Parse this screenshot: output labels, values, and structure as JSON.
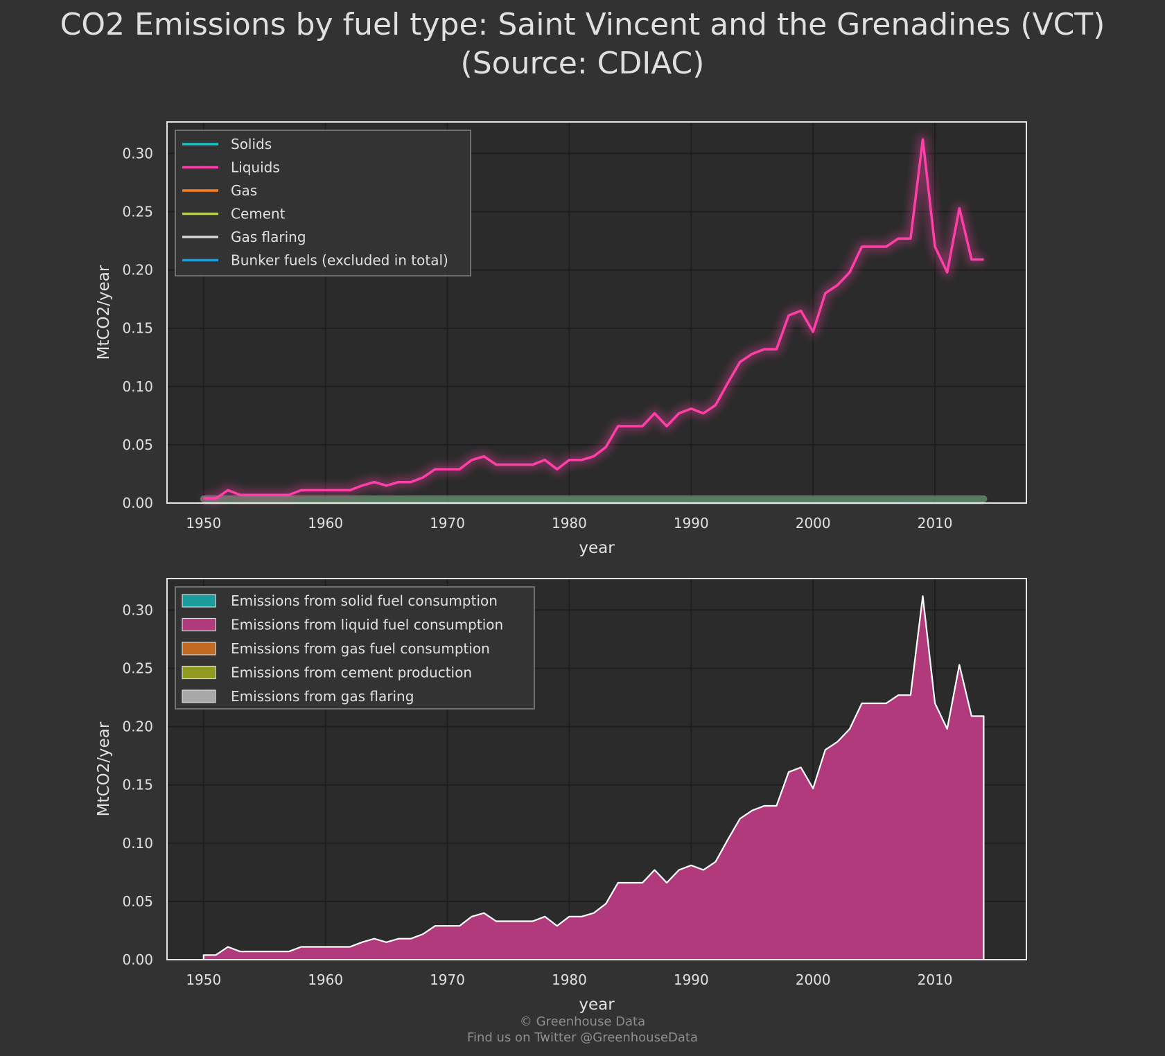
{
  "title_line1": "CO2 Emissions by fuel type: Saint Vincent and the Grenadines (VCT)",
  "title_line2": "(Source: CDIAC)",
  "footer": {
    "line1": "© Greenhouse Data",
    "line2": "Find us on Twitter @GreenhouseData"
  },
  "colors": {
    "background": "#323232",
    "plot_background": "#2b2b2b",
    "grid": "#1e1e1e",
    "frame": "#e6e6e6",
    "solids": "#17c6c8",
    "liquids": "#ff3fa8",
    "gas": "#ff7f1e",
    "cement": "#bcd12a",
    "gas_flaring": "#d8d8d8",
    "bunker": "#1f9bd1",
    "area_solid": "#1a9c9c",
    "area_liquid": "#b03a7c",
    "area_gas": "#c06a22",
    "area_cement": "#8f9a1f",
    "area_flaring": "#a8a8a8"
  },
  "chart_data": [
    {
      "type": "line",
      "xlabel": "year",
      "ylabel": "MtCO2/year",
      "xlim": [
        1947,
        2017.5
      ],
      "ylim": [
        0,
        0.327
      ],
      "xticks": [
        "1950",
        "1960",
        "1970",
        "1980",
        "1990",
        "2000",
        "2010"
      ],
      "yticks": [
        "0.00",
        "0.05",
        "0.10",
        "0.15",
        "0.20",
        "0.25",
        "0.30"
      ],
      "grid": true,
      "legend_position": "top-left",
      "x": [
        1950,
        1951,
        1952,
        1953,
        1954,
        1955,
        1956,
        1957,
        1958,
        1959,
        1960,
        1961,
        1962,
        1963,
        1964,
        1965,
        1966,
        1967,
        1968,
        1969,
        1970,
        1971,
        1972,
        1973,
        1974,
        1975,
        1976,
        1977,
        1978,
        1979,
        1980,
        1981,
        1982,
        1983,
        1984,
        1985,
        1986,
        1987,
        1988,
        1989,
        1990,
        1991,
        1992,
        1993,
        1994,
        1995,
        1996,
        1997,
        1998,
        1999,
        2000,
        2001,
        2002,
        2003,
        2004,
        2005,
        2006,
        2007,
        2008,
        2009,
        2010,
        2011,
        2012,
        2013,
        2014
      ],
      "series": [
        {
          "name": "Solids",
          "values": [
            0,
            0,
            0,
            0,
            0,
            0,
            0,
            0,
            0,
            0,
            0,
            0,
            0,
            0,
            0,
            0,
            0,
            0,
            0,
            0,
            0,
            0,
            0,
            0,
            0,
            0,
            0,
            0,
            0,
            0,
            0,
            0,
            0,
            0,
            0,
            0,
            0,
            0,
            0,
            0,
            0,
            0,
            0,
            0,
            0,
            0,
            0,
            0,
            0,
            0,
            0,
            0,
            0,
            0,
            0,
            0,
            0,
            0,
            0,
            0,
            0,
            0,
            0,
            0,
            0
          ]
        },
        {
          "name": "Liquids",
          "values": [
            0.004,
            0.004,
            0.011,
            0.007,
            0.007,
            0.007,
            0.007,
            0.007,
            0.011,
            0.011,
            0.011,
            0.011,
            0.011,
            0.015,
            0.018,
            0.015,
            0.018,
            0.018,
            0.022,
            0.029,
            0.029,
            0.029,
            0.037,
            0.04,
            0.033,
            0.033,
            0.033,
            0.033,
            0.037,
            0.029,
            0.037,
            0.037,
            0.04,
            0.048,
            0.066,
            0.066,
            0.066,
            0.077,
            0.066,
            0.077,
            0.081,
            0.077,
            0.084,
            0.103,
            0.121,
            0.128,
            0.132,
            0.132,
            0.161,
            0.165,
            0.147,
            0.18,
            0.187,
            0.198,
            0.22,
            0.22,
            0.22,
            0.227,
            0.227,
            0.312,
            0.22,
            0.198,
            0.253,
            0.209,
            0.209
          ]
        },
        {
          "name": "Gas",
          "values": [
            0,
            0,
            0,
            0,
            0,
            0,
            0,
            0,
            0,
            0,
            0,
            0,
            0,
            0,
            0,
            0,
            0,
            0,
            0,
            0,
            0,
            0,
            0,
            0,
            0,
            0,
            0,
            0,
            0,
            0,
            0,
            0,
            0,
            0,
            0,
            0,
            0,
            0,
            0,
            0,
            0,
            0,
            0,
            0,
            0,
            0,
            0,
            0,
            0,
            0,
            0,
            0,
            0,
            0,
            0,
            0,
            0,
            0,
            0,
            0,
            0,
            0,
            0,
            0,
            0
          ]
        },
        {
          "name": "Cement",
          "values": [
            0,
            0,
            0,
            0,
            0,
            0,
            0,
            0,
            0,
            0,
            0,
            0,
            0,
            0,
            0,
            0,
            0,
            0,
            0,
            0,
            0,
            0,
            0,
            0,
            0,
            0,
            0,
            0,
            0,
            0,
            0,
            0,
            0,
            0,
            0,
            0,
            0,
            0,
            0,
            0,
            0,
            0,
            0,
            0,
            0,
            0,
            0,
            0,
            0,
            0,
            0,
            0,
            0,
            0,
            0,
            0,
            0,
            0,
            0,
            0,
            0,
            0,
            0,
            0,
            0
          ]
        },
        {
          "name": "Gas flaring",
          "values": [
            0,
            0,
            0,
            0,
            0,
            0,
            0,
            0,
            0,
            0,
            0,
            0,
            0,
            0,
            0,
            0,
            0,
            0,
            0,
            0,
            0,
            0,
            0,
            0,
            0,
            0,
            0,
            0,
            0,
            0,
            0,
            0,
            0,
            0,
            0,
            0,
            0,
            0,
            0,
            0,
            0,
            0,
            0,
            0,
            0,
            0,
            0,
            0,
            0,
            0,
            0,
            0,
            0,
            0,
            0,
            0,
            0,
            0,
            0,
            0,
            0,
            0,
            0,
            0,
            0
          ]
        },
        {
          "name": "Bunker fuels (excluded in total)",
          "values": [
            0,
            0,
            0,
            0,
            0,
            0,
            0,
            0,
            0,
            0,
            0,
            0,
            0,
            0,
            0,
            0,
            0,
            0,
            0,
            0,
            0,
            0,
            0,
            0,
            0,
            0,
            0,
            0,
            0,
            0,
            0,
            0,
            0,
            0,
            0,
            0,
            0,
            0,
            0,
            0,
            0,
            0,
            0,
            0,
            0,
            0,
            0,
            0,
            0,
            0,
            0,
            0,
            0,
            0,
            0,
            0,
            0,
            0,
            0.001,
            0,
            0,
            0,
            0,
            0,
            0
          ]
        }
      ]
    },
    {
      "type": "area",
      "stacked": true,
      "xlabel": "year",
      "ylabel": "MtCO2/year",
      "xlim": [
        1947,
        2017.5
      ],
      "ylim": [
        0,
        0.327
      ],
      "xticks": [
        "1950",
        "1960",
        "1970",
        "1980",
        "1990",
        "2000",
        "2010"
      ],
      "yticks": [
        "0.00",
        "0.05",
        "0.10",
        "0.15",
        "0.20",
        "0.25",
        "0.30"
      ],
      "grid": true,
      "legend_position": "top-left",
      "legend": [
        "Emissions from solid fuel consumption",
        "Emissions from liquid fuel consumption",
        "Emissions from gas fuel consumption",
        "Emissions from cement production",
        "Emissions from gas flaring"
      ]
    }
  ]
}
